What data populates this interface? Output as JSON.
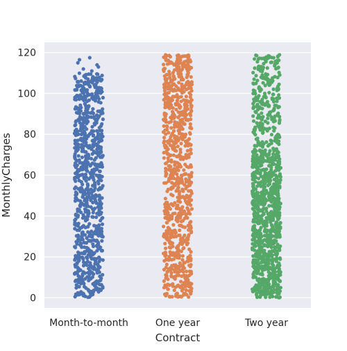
{
  "chart_data": {
    "type": "scatter",
    "style": "strip plot (jittered categorical scatter)",
    "title": "",
    "xlabel": "Contract",
    "ylabel": "MonthlyCharges",
    "categories": [
      "Month-to-month",
      "One year",
      "Two year"
    ],
    "ylim": [
      -5,
      125
    ],
    "yticks": [
      0,
      20,
      40,
      60,
      80,
      100,
      120
    ],
    "grid": true,
    "legend": "none",
    "series": [
      {
        "category": "Month-to-month",
        "color": "#4c72b0",
        "min": 0,
        "max": 117.5,
        "dense_max": 110,
        "outliers": [
          111,
          112,
          113,
          114,
          115,
          116.5,
          117.5
        ]
      },
      {
        "category": "One year",
        "color": "#dd8452",
        "min": 0,
        "max": 119,
        "dense_max": 119,
        "outliers": []
      },
      {
        "category": "Two year",
        "color": "#55a868",
        "min": 0,
        "max": 119,
        "dense_max": 72,
        "outliers": [],
        "upper_band": [
          72,
          119
        ]
      }
    ],
    "colors": {
      "background": "#eaeaf2",
      "grid": "#ffffff"
    }
  }
}
